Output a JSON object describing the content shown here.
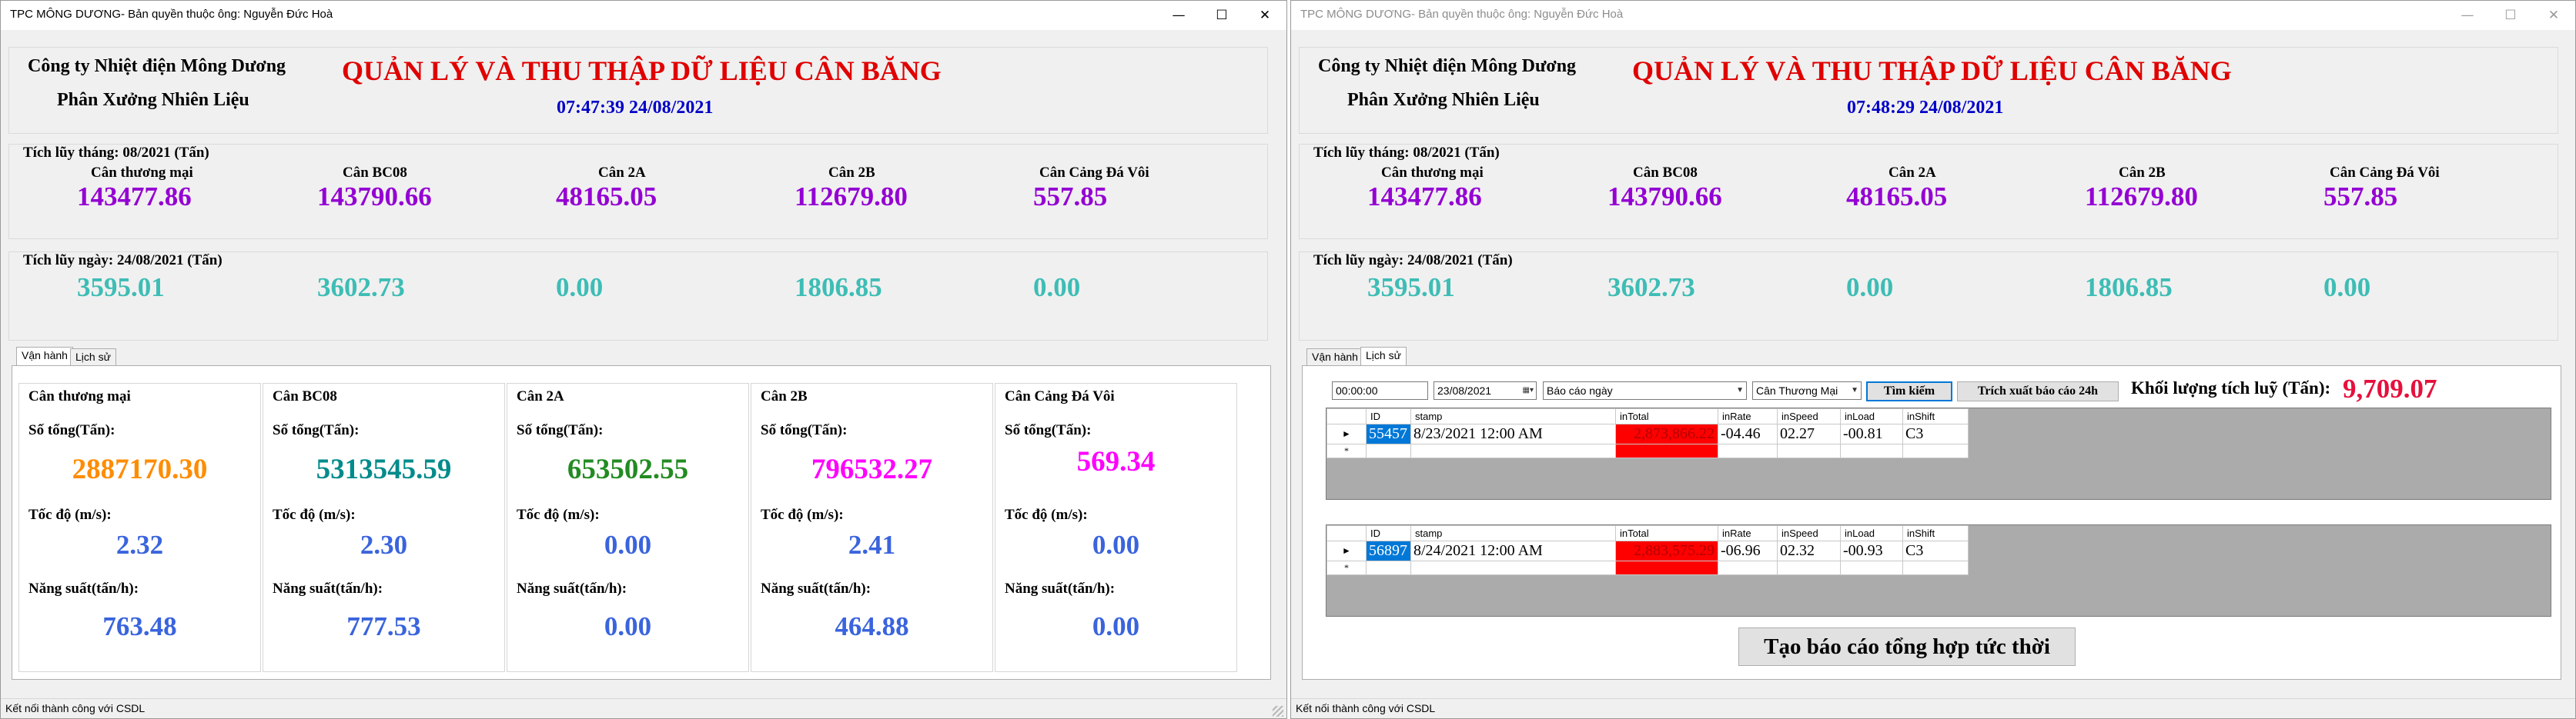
{
  "left_window": {
    "title": "TPC MÔNG DƯƠNG- Bản quyền thuộc ông: Nguyễn Đức Hoà",
    "header": {
      "company": "Công ty Nhiệt điện Mông Dương",
      "department": "Phân Xưởng Nhiên Liệu",
      "title": "QUẢN LÝ VÀ THU THẬP DỮ LIỆU CÂN BĂNG",
      "datetime": "07:47:39 24/08/2021"
    },
    "monthly": {
      "label": "Tích lũy tháng: 08/2021 (Tấn)",
      "items": [
        {
          "name": "Cân thương mại",
          "value": "143477.86"
        },
        {
          "name": "Cân BC08",
          "value": "143790.66"
        },
        {
          "name": "Cân 2A",
          "value": "48165.05"
        },
        {
          "name": "Cân 2B",
          "value": "112679.80"
        },
        {
          "name": "Cân Cảng Đá Vôi",
          "value": "557.85"
        }
      ]
    },
    "daily": {
      "label": "Tích lũy ngày: 24/08/2021 (Tấn)",
      "items": [
        {
          "value": "3595.01"
        },
        {
          "value": "3602.73"
        },
        {
          "value": "0.00"
        },
        {
          "value": "1806.85"
        },
        {
          "value": "0.00"
        }
      ]
    },
    "tabs": [
      "Vận hành",
      "Lịch sử"
    ],
    "scales": [
      {
        "title": "Cân thương mại",
        "total_label": "Số tổng(Tấn):",
        "total": "2887170.30",
        "total_color": "#ff8c00",
        "speed_label": "Tốc độ (m/s):",
        "speed": "2.32",
        "rate_label": "Năng suất(tấn/h):",
        "rate": "763.48"
      },
      {
        "title": "Cân BC08",
        "total_label": "Số tổng(Tấn):",
        "total": "5313545.59",
        "total_color": "#008b8b",
        "speed_label": "Tốc độ (m/s):",
        "speed": "2.30",
        "rate_label": "Năng suất(tấn/h):",
        "rate": "777.53"
      },
      {
        "title": "Cân 2A",
        "total_label": "Số tổng(Tấn):",
        "total": "653502.55",
        "total_color": "#228b22",
        "speed_label": "Tốc độ (m/s):",
        "speed": "0.00",
        "rate_label": "Năng suất(tấn/h):",
        "rate": "0.00"
      },
      {
        "title": "Cân 2B",
        "total_label": "Số tổng(Tấn):",
        "total": "796532.27",
        "total_color": "#ff00ff",
        "speed_label": "Tốc độ (m/s):",
        "speed": "2.41",
        "rate_label": "Năng suất(tấn/h):",
        "rate": "464.88"
      },
      {
        "title": "Cân Cảng Đá Vôi",
        "total_label": "Số tổng(Tấn):",
        "total": "569.34",
        "total_color": "#ff00ff",
        "speed_label": "Tốc độ (m/s):",
        "speed": "0.00",
        "rate_label": "Năng suất(tấn/h):",
        "rate": "0.00"
      }
    ],
    "status": "Kết nối thành công với CSDL"
  },
  "right_window": {
    "title": "TPC MÔNG DƯƠNG- Bản quyền thuộc ông: Nguyễn Đức Hoà",
    "header": {
      "company": "Công ty Nhiệt điện Mông Dương",
      "department": "Phân Xưởng Nhiên Liệu",
      "title": "QUẢN LÝ VÀ THU THẬP DỮ LIỆU CÂN BĂNG",
      "datetime": "07:48:29 24/08/2021"
    },
    "monthly": {
      "label": "Tích lũy tháng: 08/2021 (Tấn)",
      "items": [
        {
          "name": "Cân thương mại",
          "value": "143477.86"
        },
        {
          "name": "Cân BC08",
          "value": "143790.66"
        },
        {
          "name": "Cân 2A",
          "value": "48165.05"
        },
        {
          "name": "Cân 2B",
          "value": "112679.80"
        },
        {
          "name": "Cân Cảng Đá Vôi",
          "value": "557.85"
        }
      ]
    },
    "daily": {
      "label": "Tích lũy ngày: 24/08/2021 (Tấn)",
      "items": [
        {
          "value": "3595.01"
        },
        {
          "value": "3602.73"
        },
        {
          "value": "0.00"
        },
        {
          "value": "1806.85"
        },
        {
          "value": "0.00"
        }
      ]
    },
    "tabs": [
      "Vận hành",
      "Lịch sử"
    ],
    "history": {
      "time_value": "00:00:00",
      "date_value": "23/08/2021",
      "report_type": "Báo cáo ngày",
      "scale_select": "Cân Thương Mại",
      "search_label": "Tìm kiếm",
      "export_label": "Trích xuất báo cáo 24h",
      "total_label": "Khối lượng tích luỹ (Tấn):",
      "total_value": "9,709.07",
      "columns": [
        "ID",
        "stamp",
        "inTotal",
        "inRate",
        "inSpeed",
        "inLoad",
        "inShift"
      ],
      "grid1": [
        {
          "ID": "55457",
          "stamp": "8/23/2021 12:00 AM",
          "inTotal": "2,873,866.22",
          "inRate": "-04.46",
          "inSpeed": "02.27",
          "inLoad": "-00.81",
          "inShift": "C3"
        }
      ],
      "grid2": [
        {
          "ID": "56897",
          "stamp": "8/24/2021 12:00 AM",
          "inTotal": "2,883,575.29",
          "inRate": "-06.96",
          "inSpeed": "02.32",
          "inLoad": "-00.93",
          "inShift": "C3"
        }
      ],
      "instant_report_label": "Tạo báo cáo tổng hợp tức thời"
    },
    "status": "Kết nối thành công với CSDL"
  },
  "icons": {
    "minimize": "minimize-icon",
    "maximize": "maximize-icon",
    "close": "close-icon",
    "row_pointer": "row-pointer-icon",
    "new_row": "new-row-icon",
    "calendar": "calendar-icon",
    "dropdown": "chevron-down-icon"
  }
}
